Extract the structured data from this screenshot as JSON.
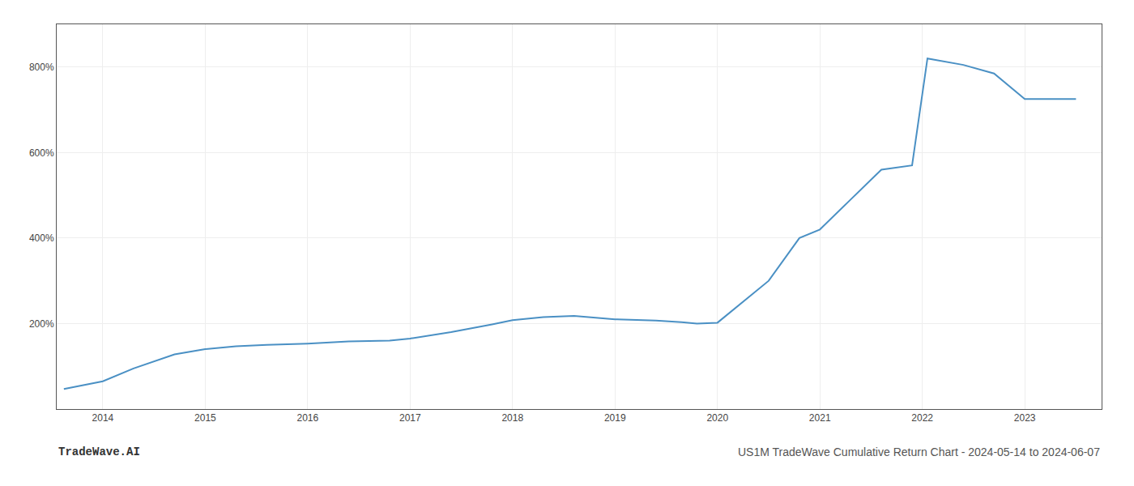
{
  "chart_data": {
    "type": "line",
    "title": "US1M TradeWave Cumulative Return Chart - 2024-05-14 to 2024-06-07",
    "annotations": [
      "TradeWave.AI"
    ],
    "x": [
      2013.62,
      2014.0,
      2014.3,
      2014.7,
      2015.0,
      2015.3,
      2015.6,
      2016.0,
      2016.4,
      2016.8,
      2017.0,
      2017.4,
      2017.8,
      2018.0,
      2018.3,
      2018.6,
      2019.0,
      2019.4,
      2019.65,
      2019.8,
      2020.0,
      2020.5,
      2020.8,
      2021.0,
      2021.3,
      2021.6,
      2021.9,
      2022.05,
      2022.4,
      2022.7,
      2023.0,
      2023.5
    ],
    "values": [
      47,
      65,
      95,
      128,
      140,
      147,
      150,
      153,
      158,
      160,
      165,
      180,
      198,
      208,
      215,
      218,
      210,
      207,
      203,
      200,
      202,
      300,
      400,
      420,
      490,
      560,
      570,
      820,
      805,
      785,
      725,
      725
    ],
    "color": "#4a90c4",
    "xlim": [
      2013.55,
      2023.75
    ],
    "xticks": [
      2014,
      2015,
      2016,
      2017,
      2018,
      2019,
      2020,
      2021,
      2022,
      2023
    ],
    "ylim": [
      0,
      900
    ],
    "yticks": [
      {
        "value": 200,
        "label": "200%"
      },
      {
        "value": 400,
        "label": "400%"
      },
      {
        "value": 600,
        "label": "600%"
      },
      {
        "value": 800,
        "label": "800%"
      }
    ],
    "grid": true
  }
}
